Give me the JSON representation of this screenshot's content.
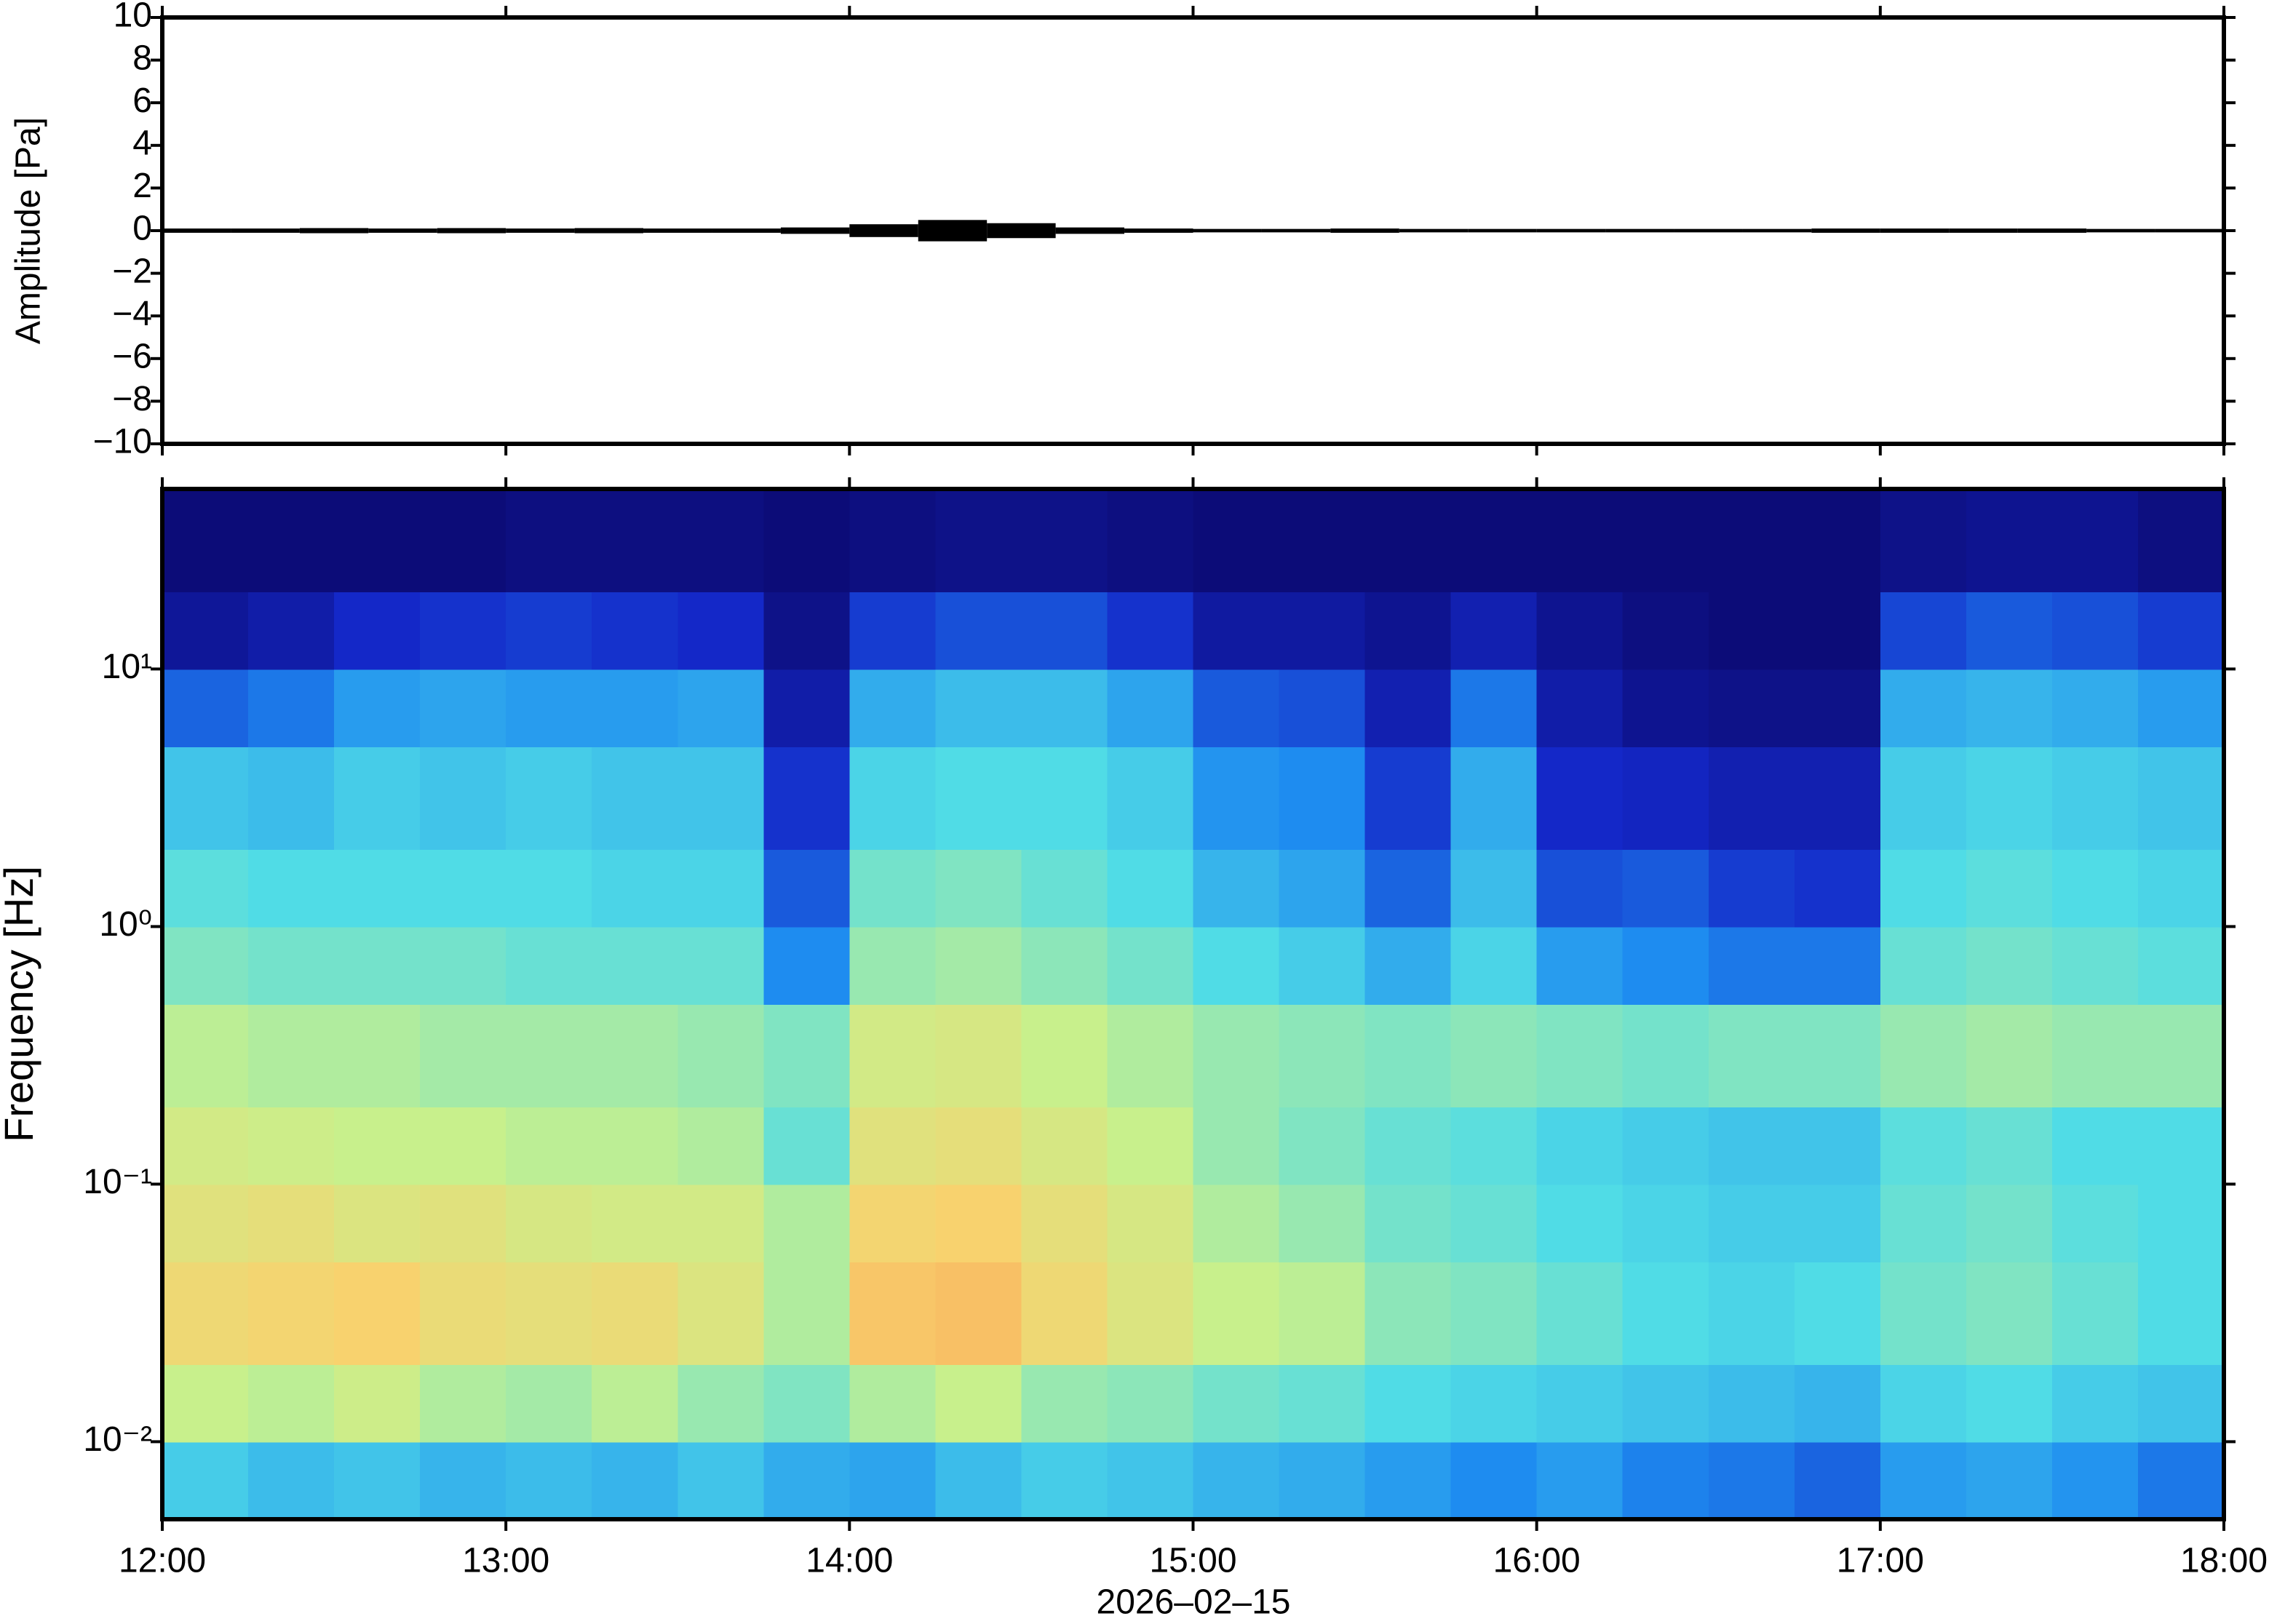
{
  "chart_data": [
    {
      "type": "envelope",
      "ylabel": "Amplitude [Pa]",
      "xlim": [
        12,
        18
      ],
      "ylim": [
        -10,
        10
      ],
      "yticks": [
        {
          "value": -10,
          "label": "−10"
        },
        {
          "value": -8,
          "label": "−8"
        },
        {
          "value": -6,
          "label": "−6"
        },
        {
          "value": -4,
          "label": "−4"
        },
        {
          "value": -2,
          "label": "−2"
        },
        0,
        2,
        4,
        6,
        8,
        10
      ],
      "color": "#000000",
      "x": [
        12.0,
        12.2,
        12.4,
        12.6,
        12.8,
        13.0,
        13.2,
        13.4,
        13.6,
        13.8,
        14.0,
        14.2,
        14.4,
        14.6,
        14.8,
        15.0,
        15.2,
        15.4,
        15.6,
        15.8,
        16.0,
        16.2,
        16.4,
        16.6,
        16.8,
        17.0,
        17.2,
        17.4,
        17.6,
        17.8
      ],
      "values": [
        0.1,
        0.1,
        0.12,
        0.1,
        0.12,
        0.1,
        0.12,
        0.1,
        0.1,
        0.15,
        0.3,
        0.5,
        0.35,
        0.15,
        0.1,
        0.08,
        0.08,
        0.1,
        0.08,
        0.08,
        0.08,
        0.08,
        0.08,
        0.08,
        0.1,
        0.1,
        0.1,
        0.1,
        0.08,
        0.08
      ]
    },
    {
      "type": "spectrogram",
      "ylabel": "Frequency [Hz]",
      "xlabel": "2026–02–15",
      "xlim": [
        12,
        18
      ],
      "xticks": [
        {
          "value": 12,
          "label": "12:00"
        },
        {
          "value": 13,
          "label": "13:00"
        },
        {
          "value": 14,
          "label": "14:00"
        },
        {
          "value": 15,
          "label": "15:00"
        },
        {
          "value": 16,
          "label": "16:00"
        },
        {
          "value": 17,
          "label": "17:00"
        },
        {
          "value": 18,
          "label": "18:00"
        }
      ],
      "ylim": [
        0.005,
        50
      ],
      "log_y": true,
      "yticks": [
        {
          "value": 0.01,
          "label": "10⁻²"
        },
        {
          "value": 0.1,
          "label": "10⁻¹"
        },
        {
          "value": 1,
          "label": "10⁰"
        },
        {
          "value": 10,
          "label": "10¹"
        }
      ],
      "colormap": [
        "#0c0c78",
        "#1428c8",
        "#1e8cf0",
        "#50dce6",
        "#c8f08c",
        "#f8d26e",
        "#f89650"
      ],
      "frequencies": [
        0.005,
        0.01,
        0.02,
        0.05,
        0.1,
        0.2,
        0.5,
        1,
        2,
        5,
        10,
        20,
        50
      ],
      "intensity": [
        [
          2.8,
          2.6,
          2.7,
          2.5,
          2.6,
          2.5,
          2.7,
          2.4,
          2.3,
          2.6,
          2.8,
          2.7,
          2.5,
          2.4,
          2.2,
          2.0,
          2.2,
          1.9,
          1.8,
          1.6,
          2.2,
          2.3,
          2.1,
          1.8
        ],
        [
          4.0,
          3.9,
          4.1,
          3.8,
          3.7,
          3.9,
          3.6,
          3.4,
          3.8,
          4.0,
          3.6,
          3.5,
          3.3,
          3.2,
          3.0,
          2.9,
          2.8,
          2.7,
          2.6,
          2.5,
          2.9,
          3.0,
          2.8,
          2.7
        ],
        [
          4.8,
          4.9,
          5.0,
          4.7,
          4.6,
          4.7,
          4.4,
          3.8,
          5.2,
          5.3,
          4.8,
          4.4,
          4.0,
          3.9,
          3.5,
          3.4,
          3.2,
          3.0,
          2.9,
          3.0,
          3.3,
          3.4,
          3.2,
          3.0
        ],
        [
          4.5,
          4.6,
          4.4,
          4.5,
          4.3,
          4.2,
          4.2,
          3.8,
          4.9,
          5.0,
          4.6,
          4.3,
          3.8,
          3.6,
          3.3,
          3.2,
          3.0,
          2.9,
          2.8,
          2.8,
          3.2,
          3.3,
          3.1,
          3.0
        ],
        [
          4.2,
          4.1,
          4.0,
          4.0,
          3.9,
          3.9,
          3.8,
          3.2,
          4.5,
          4.6,
          4.3,
          4.0,
          3.6,
          3.4,
          3.2,
          3.1,
          2.9,
          2.8,
          2.7,
          2.7,
          3.1,
          3.2,
          3.0,
          3.0
        ],
        [
          3.9,
          3.8,
          3.8,
          3.7,
          3.7,
          3.7,
          3.6,
          3.4,
          4.2,
          4.3,
          4.0,
          3.8,
          3.6,
          3.5,
          3.4,
          3.5,
          3.4,
          3.3,
          3.4,
          3.4,
          3.6,
          3.7,
          3.6,
          3.6
        ],
        [
          3.4,
          3.3,
          3.3,
          3.3,
          3.2,
          3.2,
          3.2,
          2.0,
          3.6,
          3.7,
          3.5,
          3.3,
          3.0,
          2.8,
          2.4,
          2.9,
          2.2,
          2.0,
          1.8,
          1.8,
          3.2,
          3.3,
          3.2,
          3.1
        ],
        [
          3.1,
          3.0,
          3.0,
          3.0,
          3.0,
          2.9,
          2.9,
          1.5,
          3.3,
          3.4,
          3.2,
          3.0,
          2.5,
          2.3,
          1.6,
          2.6,
          1.4,
          1.5,
          1.2,
          1.1,
          3.0,
          3.1,
          3.0,
          2.9
        ],
        [
          2.7,
          2.6,
          2.8,
          2.7,
          2.8,
          2.7,
          2.7,
          1.1,
          2.9,
          3.0,
          3.0,
          2.8,
          2.1,
          2.0,
          1.2,
          2.4,
          1.0,
          0.9,
          0.7,
          0.7,
          2.8,
          2.9,
          2.8,
          2.7
        ],
        [
          1.6,
          1.8,
          2.2,
          2.3,
          2.2,
          2.2,
          2.3,
          0.6,
          2.4,
          2.6,
          2.6,
          2.3,
          1.5,
          1.4,
          0.7,
          1.8,
          0.6,
          0.3,
          0.2,
          0.2,
          2.4,
          2.5,
          2.4,
          2.2
        ],
        [
          0.4,
          0.6,
          1.0,
          1.1,
          1.2,
          1.1,
          1.0,
          0.2,
          1.2,
          1.4,
          1.4,
          1.1,
          0.5,
          0.5,
          0.3,
          0.7,
          0.3,
          0.1,
          0.0,
          0.0,
          1.3,
          1.5,
          1.4,
          1.2
        ],
        [
          0,
          0,
          0,
          0,
          0.1,
          0.1,
          0.1,
          0,
          0.1,
          0.2,
          0.2,
          0.1,
          0,
          0,
          0,
          0,
          0,
          0,
          0,
          0,
          0.2,
          0.3,
          0.3,
          0.1
        ]
      ]
    }
  ]
}
